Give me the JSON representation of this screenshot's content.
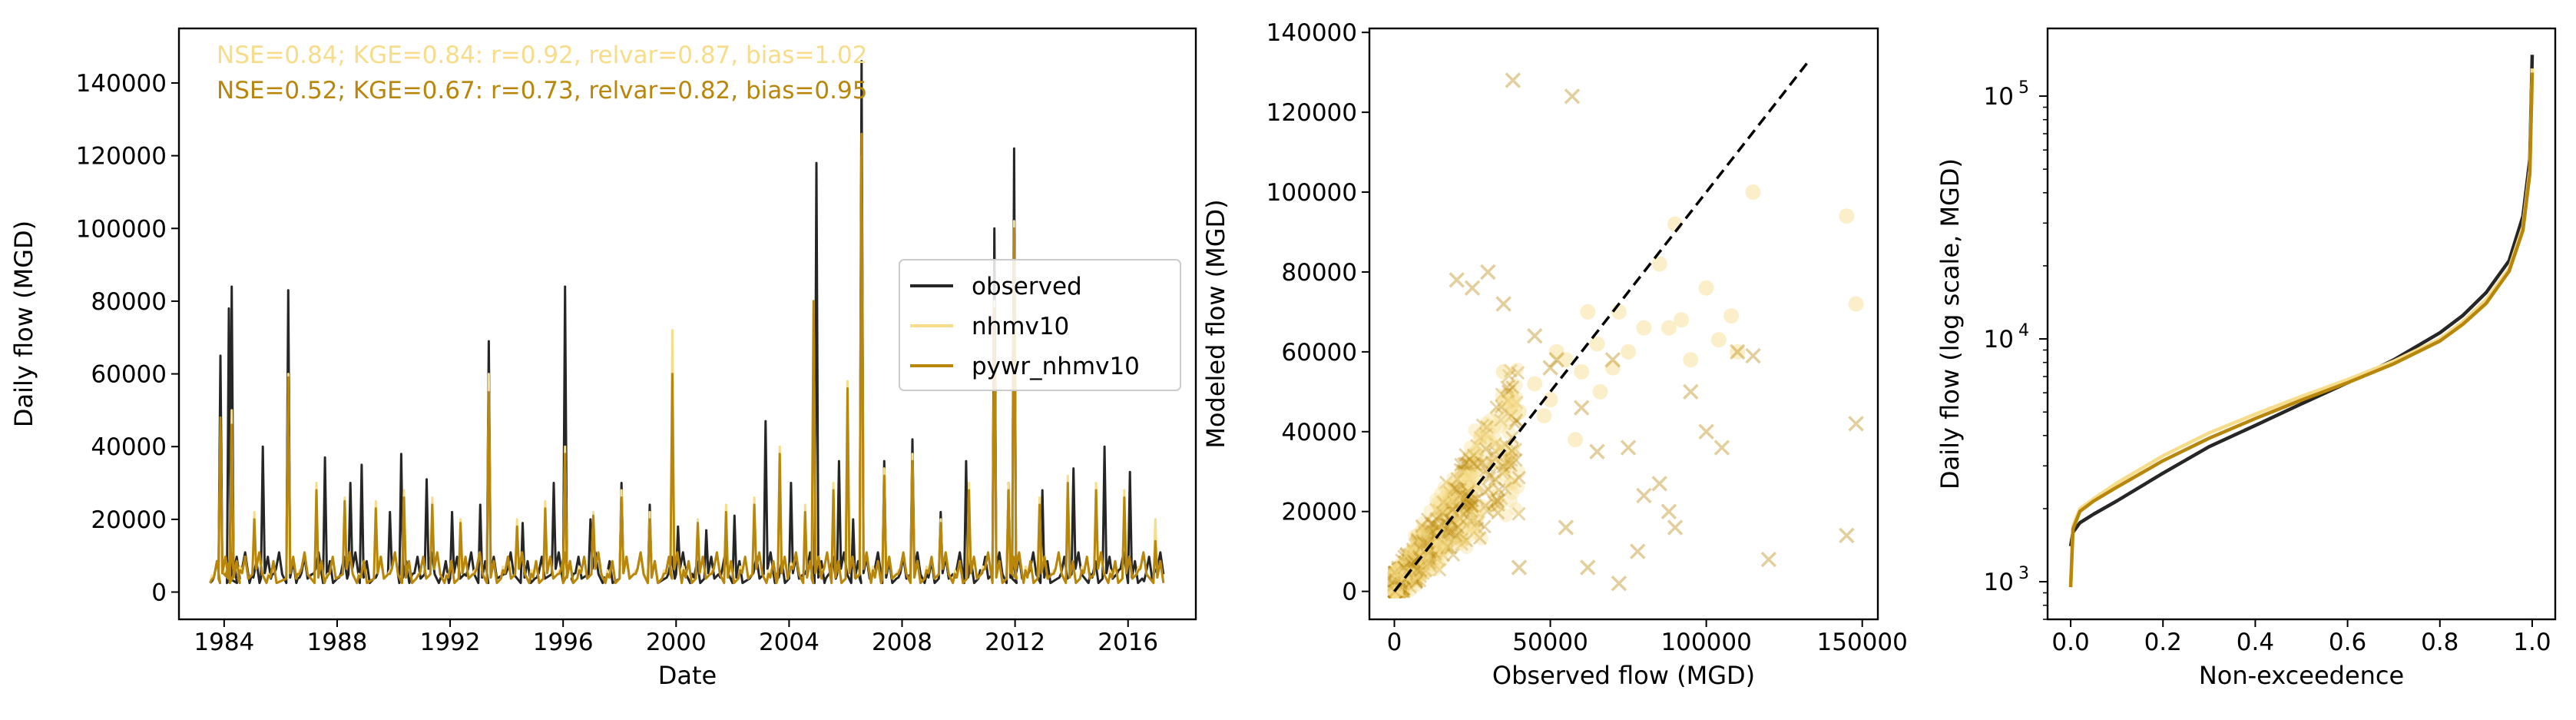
{
  "colors": {
    "observed": "#262626",
    "nhmv10": "#f7dc8a",
    "pywr_nhmv10": "#b8860b",
    "diagonal": "#000000"
  },
  "chart_data": [
    {
      "type": "line",
      "xlabel": "Date",
      "ylabel": "Daily flow (MGD)",
      "xlim": [
        1982.4,
        2018.4
      ],
      "ylim": [
        -7500,
        155000
      ],
      "xticks": [
        "1984",
        "1988",
        "1992",
        "1996",
        "2000",
        "2004",
        "2008",
        "2012",
        "2016"
      ],
      "yticks": [
        "0",
        "20000",
        "40000",
        "60000",
        "80000",
        "100000",
        "120000",
        "140000"
      ],
      "metrics": [
        "NSE=0.84; KGE=0.84: r=0.92, relvar=0.87, bias=1.02",
        "NSE=0.52; KGE=0.67: r=0.73, relvar=0.82, bias=0.95"
      ],
      "legend_position": "center-right",
      "series": [
        {
          "name": "observed",
          "x": [
            1983.5,
            1983.8,
            1984.0,
            1984.1,
            1984.2,
            1984.5,
            1984.9,
            1985.3,
            1985.7,
            1986.2,
            1986.6,
            1987.1,
            1987.5,
            1988.0,
            1988.4,
            1988.8,
            1989.3,
            1989.8,
            1990.2,
            1990.6,
            1991.1,
            1991.6,
            1992.0,
            1992.5,
            1993.0,
            1993.3,
            1993.9,
            1994.5,
            1995.0,
            1995.6,
            1996.0,
            1996.3,
            1996.9,
            1997.4,
            1998.0,
            1998.5,
            1999.0,
            1999.6,
            2000.0,
            2000.5,
            2001.0,
            2001.5,
            2002.0,
            2002.6,
            2003.1,
            2003.5,
            2004.0,
            2004.5,
            2004.9,
            2005.3,
            2005.7,
            2006.2,
            2006.5,
            2006.9,
            2007.3,
            2007.8,
            2008.3,
            2008.8,
            2009.3,
            2009.8,
            2010.2,
            2010.7,
            2011.2,
            2011.7,
            2011.9,
            2012.4,
            2012.9,
            2013.5,
            2014.0,
            2014.6,
            2015.1,
            2015.6,
            2016.0,
            2016.5,
            2016.9
          ],
          "y": [
            3000,
            65000,
            5000,
            78000,
            84000,
            6000,
            4500,
            40000,
            5000,
            83000,
            4000,
            5000,
            37000,
            4000,
            30000,
            35000,
            4000,
            22000,
            38000,
            5000,
            31000,
            4000,
            22000,
            4500,
            24000,
            69000,
            5000,
            19000,
            4000,
            30000,
            84000,
            5000,
            20000,
            4000,
            30000,
            5000,
            24000,
            4000,
            18000,
            5000,
            17000,
            4000,
            21000,
            4500,
            47000,
            5000,
            30000,
            5000,
            118000,
            4500,
            36000,
            20000,
            146000,
            5000,
            36000,
            4000,
            42000,
            5000,
            22000,
            4000,
            36000,
            6000,
            100000,
            30000,
            122000,
            5000,
            28000,
            4000,
            34000,
            5000,
            40000,
            6000,
            33000,
            3000,
            6000
          ]
        },
        {
          "name": "nhmv10",
          "x": [
            1983.5,
            1983.8,
            1984.0,
            1984.2,
            1984.5,
            1985.0,
            1985.5,
            1986.2,
            1986.6,
            1987.2,
            1987.6,
            1988.2,
            1988.7,
            1989.3,
            1989.8,
            1990.3,
            1990.8,
            1991.3,
            1991.8,
            1992.3,
            1992.8,
            1993.3,
            1993.8,
            1994.3,
            1994.8,
            1995.3,
            1995.8,
            1996.0,
            1996.5,
            1997.0,
            1997.5,
            1998.0,
            1998.5,
            1999.0,
            1999.5,
            1999.8,
            2000.2,
            2000.7,
            2001.2,
            2001.7,
            2002.2,
            2002.7,
            2003.2,
            2003.6,
            2004.0,
            2004.5,
            2004.8,
            2005.1,
            2005.5,
            2006.0,
            2006.5,
            2006.9,
            2007.3,
            2007.8,
            2008.3,
            2008.8,
            2009.3,
            2009.8,
            2010.3,
            2010.8,
            2011.2,
            2011.7,
            2011.9,
            2012.3,
            2012.8,
            2013.3,
            2013.8,
            2014.3,
            2014.8,
            2015.3,
            2015.8,
            2016.3,
            2016.9
          ],
          "y": [
            4500,
            45000,
            6000,
            50000,
            7000,
            22000,
            5000,
            60000,
            6000,
            30000,
            5000,
            26000,
            5000,
            25000,
            6000,
            28000,
            5000,
            26000,
            5000,
            20000,
            6000,
            60000,
            7000,
            20000,
            6000,
            25000,
            6000,
            40000,
            7000,
            22000,
            6000,
            28000,
            6000,
            22000,
            6000,
            72000,
            7000,
            20000,
            6000,
            24000,
            7000,
            26000,
            6000,
            40000,
            8000,
            24000,
            80000,
            6000,
            30000,
            58000,
            120000,
            7000,
            34000,
            6000,
            38000,
            7000,
            20000,
            6000,
            30000,
            7000,
            80000,
            30000,
            102000,
            7000,
            26000,
            6000,
            32000,
            7000,
            30000,
            6000,
            28000,
            7000,
            20000
          ]
        },
        {
          "name": "pywr_nhmv10",
          "x": [
            1983.5,
            1983.8,
            1984.0,
            1984.2,
            1984.5,
            1985.0,
            1985.5,
            1986.2,
            1986.6,
            1987.2,
            1987.6,
            1988.2,
            1988.7,
            1989.3,
            1989.8,
            1990.3,
            1990.8,
            1991.3,
            1991.8,
            1992.3,
            1992.8,
            1993.3,
            1993.8,
            1994.3,
            1994.8,
            1995.3,
            1995.8,
            1996.0,
            1996.5,
            1997.0,
            1997.5,
            1998.0,
            1998.5,
            1999.0,
            1999.5,
            1999.8,
            2000.2,
            2000.7,
            2001.2,
            2001.7,
            2002.2,
            2002.7,
            2003.2,
            2003.6,
            2004.0,
            2004.5,
            2004.8,
            2005.1,
            2005.5,
            2006.0,
            2006.5,
            2006.9,
            2007.3,
            2007.8,
            2008.3,
            2008.8,
            2009.3,
            2009.8,
            2010.3,
            2010.8,
            2011.2,
            2011.7,
            2011.9,
            2012.3,
            2012.8,
            2013.3,
            2013.8,
            2014.3,
            2014.8,
            2015.3,
            2015.8,
            2016.3,
            2016.9
          ],
          "y": [
            3500,
            48000,
            5000,
            46000,
            6000,
            20000,
            4500,
            59000,
            5000,
            28000,
            4500,
            25000,
            4500,
            23000,
            5000,
            26000,
            4500,
            24000,
            4500,
            19000,
            5000,
            55000,
            6000,
            18000,
            5000,
            23000,
            5000,
            38000,
            6000,
            21000,
            5000,
            26000,
            5000,
            20000,
            5000,
            60000,
            6000,
            19000,
            5000,
            22000,
            6000,
            24000,
            5000,
            38000,
            7000,
            22000,
            80000,
            5000,
            28000,
            56000,
            126000,
            6000,
            32000,
            5000,
            36000,
            6000,
            19000,
            5000,
            28000,
            6000,
            78000,
            28000,
            100000,
            6000,
            24000,
            5000,
            30000,
            6000,
            28000,
            5000,
            26000,
            6000,
            14000
          ]
        }
      ]
    },
    {
      "type": "scatter",
      "xlabel": "Observed flow (MGD)",
      "ylabel": "Modeled flow (MGD)",
      "xlim": [
        -8000,
        155000
      ],
      "ylim": [
        -7000,
        141000
      ],
      "xticks": [
        "0",
        "50000",
        "100000",
        "150000"
      ],
      "yticks": [
        "0",
        "20000",
        "40000",
        "60000",
        "80000",
        "100000",
        "120000",
        "140000"
      ],
      "diagonal": [
        [
          0,
          0
        ],
        [
          133000,
          133000
        ]
      ],
      "series": [
        {
          "marker": "circle",
          "x": [
            40000,
            45000,
            50000,
            55000,
            60000,
            62000,
            65000,
            70000,
            75000,
            80000,
            85000,
            90000,
            92000,
            100000,
            104000,
            108000,
            115000,
            145000,
            148000,
            35000,
            38000,
            52000,
            58000,
            66000,
            72000,
            88000,
            95000,
            110000,
            30000,
            48000
          ],
          "y": [
            45000,
            52000,
            48000,
            58000,
            55000,
            70000,
            62000,
            56000,
            60000,
            66000,
            82000,
            92000,
            68000,
            76000,
            63000,
            69000,
            100000,
            94000,
            72000,
            55000,
            48000,
            60000,
            38000,
            50000,
            70000,
            66000,
            58000,
            60000,
            40000,
            44000
          ]
        },
        {
          "marker": "x",
          "x": [
            38000,
            57000,
            52000,
            60000,
            95000,
            115000,
            145000,
            148000,
            120000,
            70000,
            75000,
            80000,
            105000,
            85000,
            90000,
            100000,
            110000,
            30000,
            25000,
            20000,
            45000,
            50000,
            65000,
            62000,
            72000,
            88000,
            40000,
            55000,
            35000,
            78000
          ],
          "y": [
            128000,
            124000,
            58000,
            46000,
            50000,
            59000,
            14000,
            42000,
            8000,
            58000,
            36000,
            24000,
            36000,
            27000,
            16000,
            40000,
            60000,
            80000,
            76000,
            78000,
            64000,
            56000,
            35000,
            6000,
            2000,
            20000,
            6000,
            16000,
            72000,
            10000
          ]
        }
      ]
    },
    {
      "type": "line",
      "xlabel": "Non-exceedence",
      "ylabel": "Daily flow (log scale, MGD)",
      "xlim": [
        -0.05,
        1.05
      ],
      "ylim": [
        700,
        190000
      ],
      "yscale": "log",
      "xticks": [
        "0.0",
        "0.2",
        "0.4",
        "0.6",
        "0.8",
        "1.0"
      ],
      "series": [
        {
          "name": "observed",
          "x": [
            0,
            0.005,
            0.02,
            0.05,
            0.1,
            0.2,
            0.3,
            0.4,
            0.5,
            0.6,
            0.7,
            0.8,
            0.85,
            0.9,
            0.95,
            0.98,
            0.995,
            1.0
          ],
          "y": [
            1400,
            1600,
            1750,
            1900,
            2150,
            2800,
            3600,
            4400,
            5400,
            6600,
            8200,
            10600,
            12500,
            15500,
            21000,
            32000,
            55000,
            148000
          ]
        },
        {
          "name": "nhmv10",
          "x": [
            0,
            0.005,
            0.02,
            0.05,
            0.1,
            0.2,
            0.3,
            0.4,
            0.5,
            0.6,
            0.7,
            0.8,
            0.85,
            0.9,
            0.95,
            0.98,
            0.995,
            1.0
          ],
          "y": [
            950,
            1700,
            2000,
            2200,
            2550,
            3300,
            4100,
            4900,
            5800,
            6800,
            8100,
            10000,
            11800,
            14500,
            19500,
            29000,
            50000,
            130000
          ]
        },
        {
          "name": "pywr_nhmv10",
          "x": [
            0,
            0.005,
            0.02,
            0.05,
            0.1,
            0.2,
            0.3,
            0.4,
            0.5,
            0.6,
            0.7,
            0.8,
            0.85,
            0.9,
            0.95,
            0.98,
            0.995,
            1.0
          ],
          "y": [
            950,
            1650,
            1950,
            2150,
            2450,
            3150,
            3900,
            4700,
            5600,
            6600,
            7900,
            9800,
            11500,
            14000,
            19000,
            28000,
            48000,
            125000
          ]
        }
      ]
    }
  ]
}
